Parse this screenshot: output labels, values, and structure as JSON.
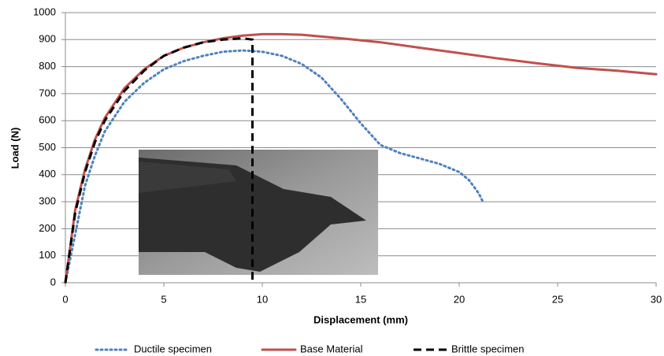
{
  "chart_data": {
    "type": "line",
    "x_label": "Displacement (mm)",
    "y_label": "Load (N)",
    "xlim": [
      0,
      30
    ],
    "xticks": [
      0,
      5,
      10,
      15,
      20,
      25,
      30
    ],
    "ylim": [
      0,
      1000
    ],
    "yticks": [
      0,
      100,
      200,
      300,
      400,
      500,
      600,
      700,
      800,
      900,
      1000
    ],
    "grid": true,
    "legend": "bottom",
    "series": [
      {
        "name": "Ductile specimen",
        "color": "#4f81bd",
        "style": "dotted",
        "x": [
          0,
          0.5,
          1,
          1.5,
          2,
          3,
          4,
          5,
          6,
          7,
          8,
          9,
          10,
          11,
          12,
          13,
          14,
          15,
          16,
          17,
          18,
          19,
          20,
          20.5,
          21,
          21.2
        ],
        "values": [
          0,
          180,
          360,
          470,
          560,
          670,
          740,
          790,
          820,
          840,
          855,
          860,
          855,
          840,
          810,
          760,
          680,
          590,
          510,
          480,
          460,
          440,
          410,
          380,
          330,
          300
        ]
      },
      {
        "name": "Base Material",
        "color": "#c0504d",
        "style": "solid",
        "x": [
          0,
          0.5,
          1,
          1.5,
          2,
          3,
          4,
          5,
          6,
          7,
          8,
          9,
          10,
          11,
          12,
          14,
          16,
          18,
          20,
          22,
          24,
          26,
          28,
          30
        ],
        "values": [
          0,
          270,
          420,
          530,
          610,
          720,
          790,
          840,
          870,
          890,
          905,
          915,
          920,
          920,
          918,
          905,
          890,
          870,
          850,
          830,
          812,
          795,
          785,
          772
        ]
      },
      {
        "name": "Brittle specimen",
        "color": "#000000",
        "style": "dashed",
        "x": [
          0,
          0.5,
          1,
          1.5,
          2,
          3,
          4,
          5,
          6,
          7,
          8,
          9,
          9.5,
          9.5
        ],
        "values": [
          0,
          260,
          410,
          520,
          600,
          710,
          785,
          840,
          870,
          890,
          900,
          905,
          900,
          0
        ]
      }
    ]
  }
}
